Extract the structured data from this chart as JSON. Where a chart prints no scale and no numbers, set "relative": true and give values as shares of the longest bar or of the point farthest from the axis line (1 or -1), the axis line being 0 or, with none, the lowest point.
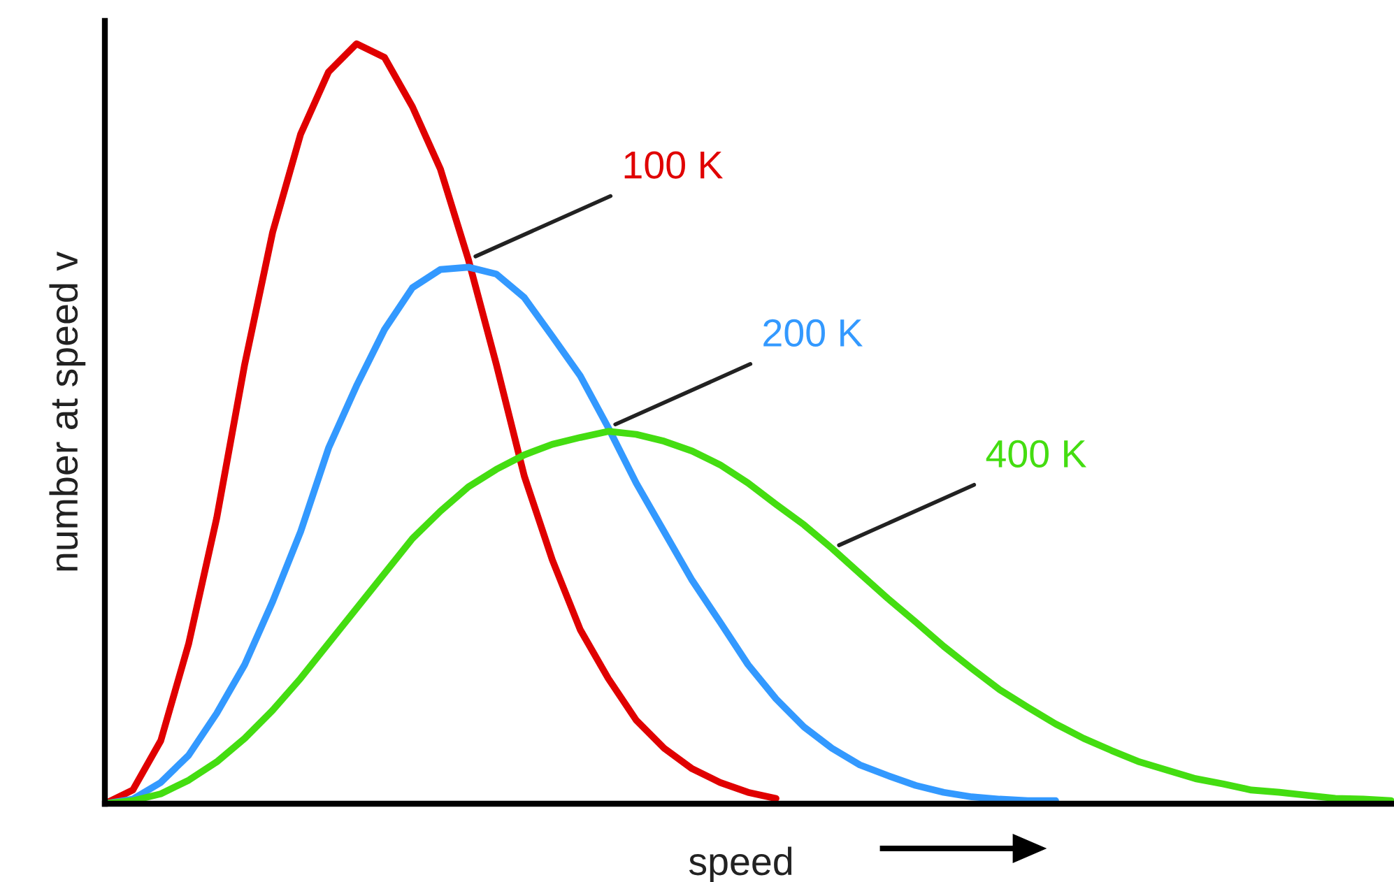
{
  "chart_data": {
    "type": "line",
    "relative": true,
    "xlabel": "speed",
    "ylabel": "number at speed v",
    "legend": false,
    "grid": false,
    "marker": "none",
    "line_style": "solid",
    "categories": [
      null,
      null,
      null,
      null,
      null,
      null,
      null,
      null,
      null,
      null,
      null,
      null,
      null,
      null,
      null,
      null,
      null,
      null,
      null,
      null,
      null,
      null,
      null,
      null,
      null,
      null,
      null,
      null,
      null,
      null,
      null,
      null,
      null,
      null,
      null,
      null,
      null,
      null,
      null,
      null,
      null,
      null,
      null,
      null,
      null,
      null,
      null
    ],
    "series": [
      {
        "name": "100 K",
        "color": "#e00000",
        "values": [
          0,
          0.018,
          0.083,
          0.211,
          0.376,
          0.578,
          0.752,
          0.881,
          0.963,
          1.0,
          0.982,
          0.917,
          0.835,
          0.716,
          0.578,
          0.431,
          0.321,
          0.229,
          0.165,
          0.11,
          0.073,
          0.046,
          0.028,
          0.015,
          0.007,
          null,
          null,
          null,
          null,
          null,
          null,
          null,
          null,
          null,
          null,
          null,
          null,
          null,
          null,
          null,
          null,
          null,
          null,
          null,
          null,
          null,
          null
        ]
      },
      {
        "name": "200 K",
        "color": "#3399ff",
        "values": [
          0,
          0.006,
          0.028,
          0.064,
          0.119,
          0.183,
          0.266,
          0.358,
          0.468,
          0.55,
          0.624,
          0.679,
          0.703,
          0.706,
          0.697,
          0.666,
          0.615,
          0.563,
          0.495,
          0.422,
          0.358,
          0.294,
          0.239,
          0.183,
          0.138,
          0.101,
          0.073,
          0.051,
          0.037,
          0.024,
          0.015,
          0.009,
          0.006,
          0.004,
          0.004,
          null,
          null,
          null,
          null,
          null,
          null,
          null,
          null,
          null,
          null,
          null,
          null
        ]
      },
      {
        "name": "400 K",
        "color": "#44dd11",
        "values": [
          0,
          0.004,
          0.013,
          0.031,
          0.055,
          0.086,
          0.123,
          0.165,
          0.211,
          0.257,
          0.303,
          0.349,
          0.385,
          0.417,
          0.44,
          0.459,
          0.473,
          0.482,
          0.49,
          0.486,
          0.477,
          0.464,
          0.446,
          0.422,
          0.394,
          0.367,
          0.336,
          0.303,
          0.27,
          0.239,
          0.207,
          0.178,
          0.15,
          0.127,
          0.105,
          0.086,
          0.07,
          0.055,
          0.044,
          0.033,
          0.026,
          0.018,
          0.015,
          0.011,
          0.007,
          0.006,
          0.004
        ]
      }
    ]
  }
}
